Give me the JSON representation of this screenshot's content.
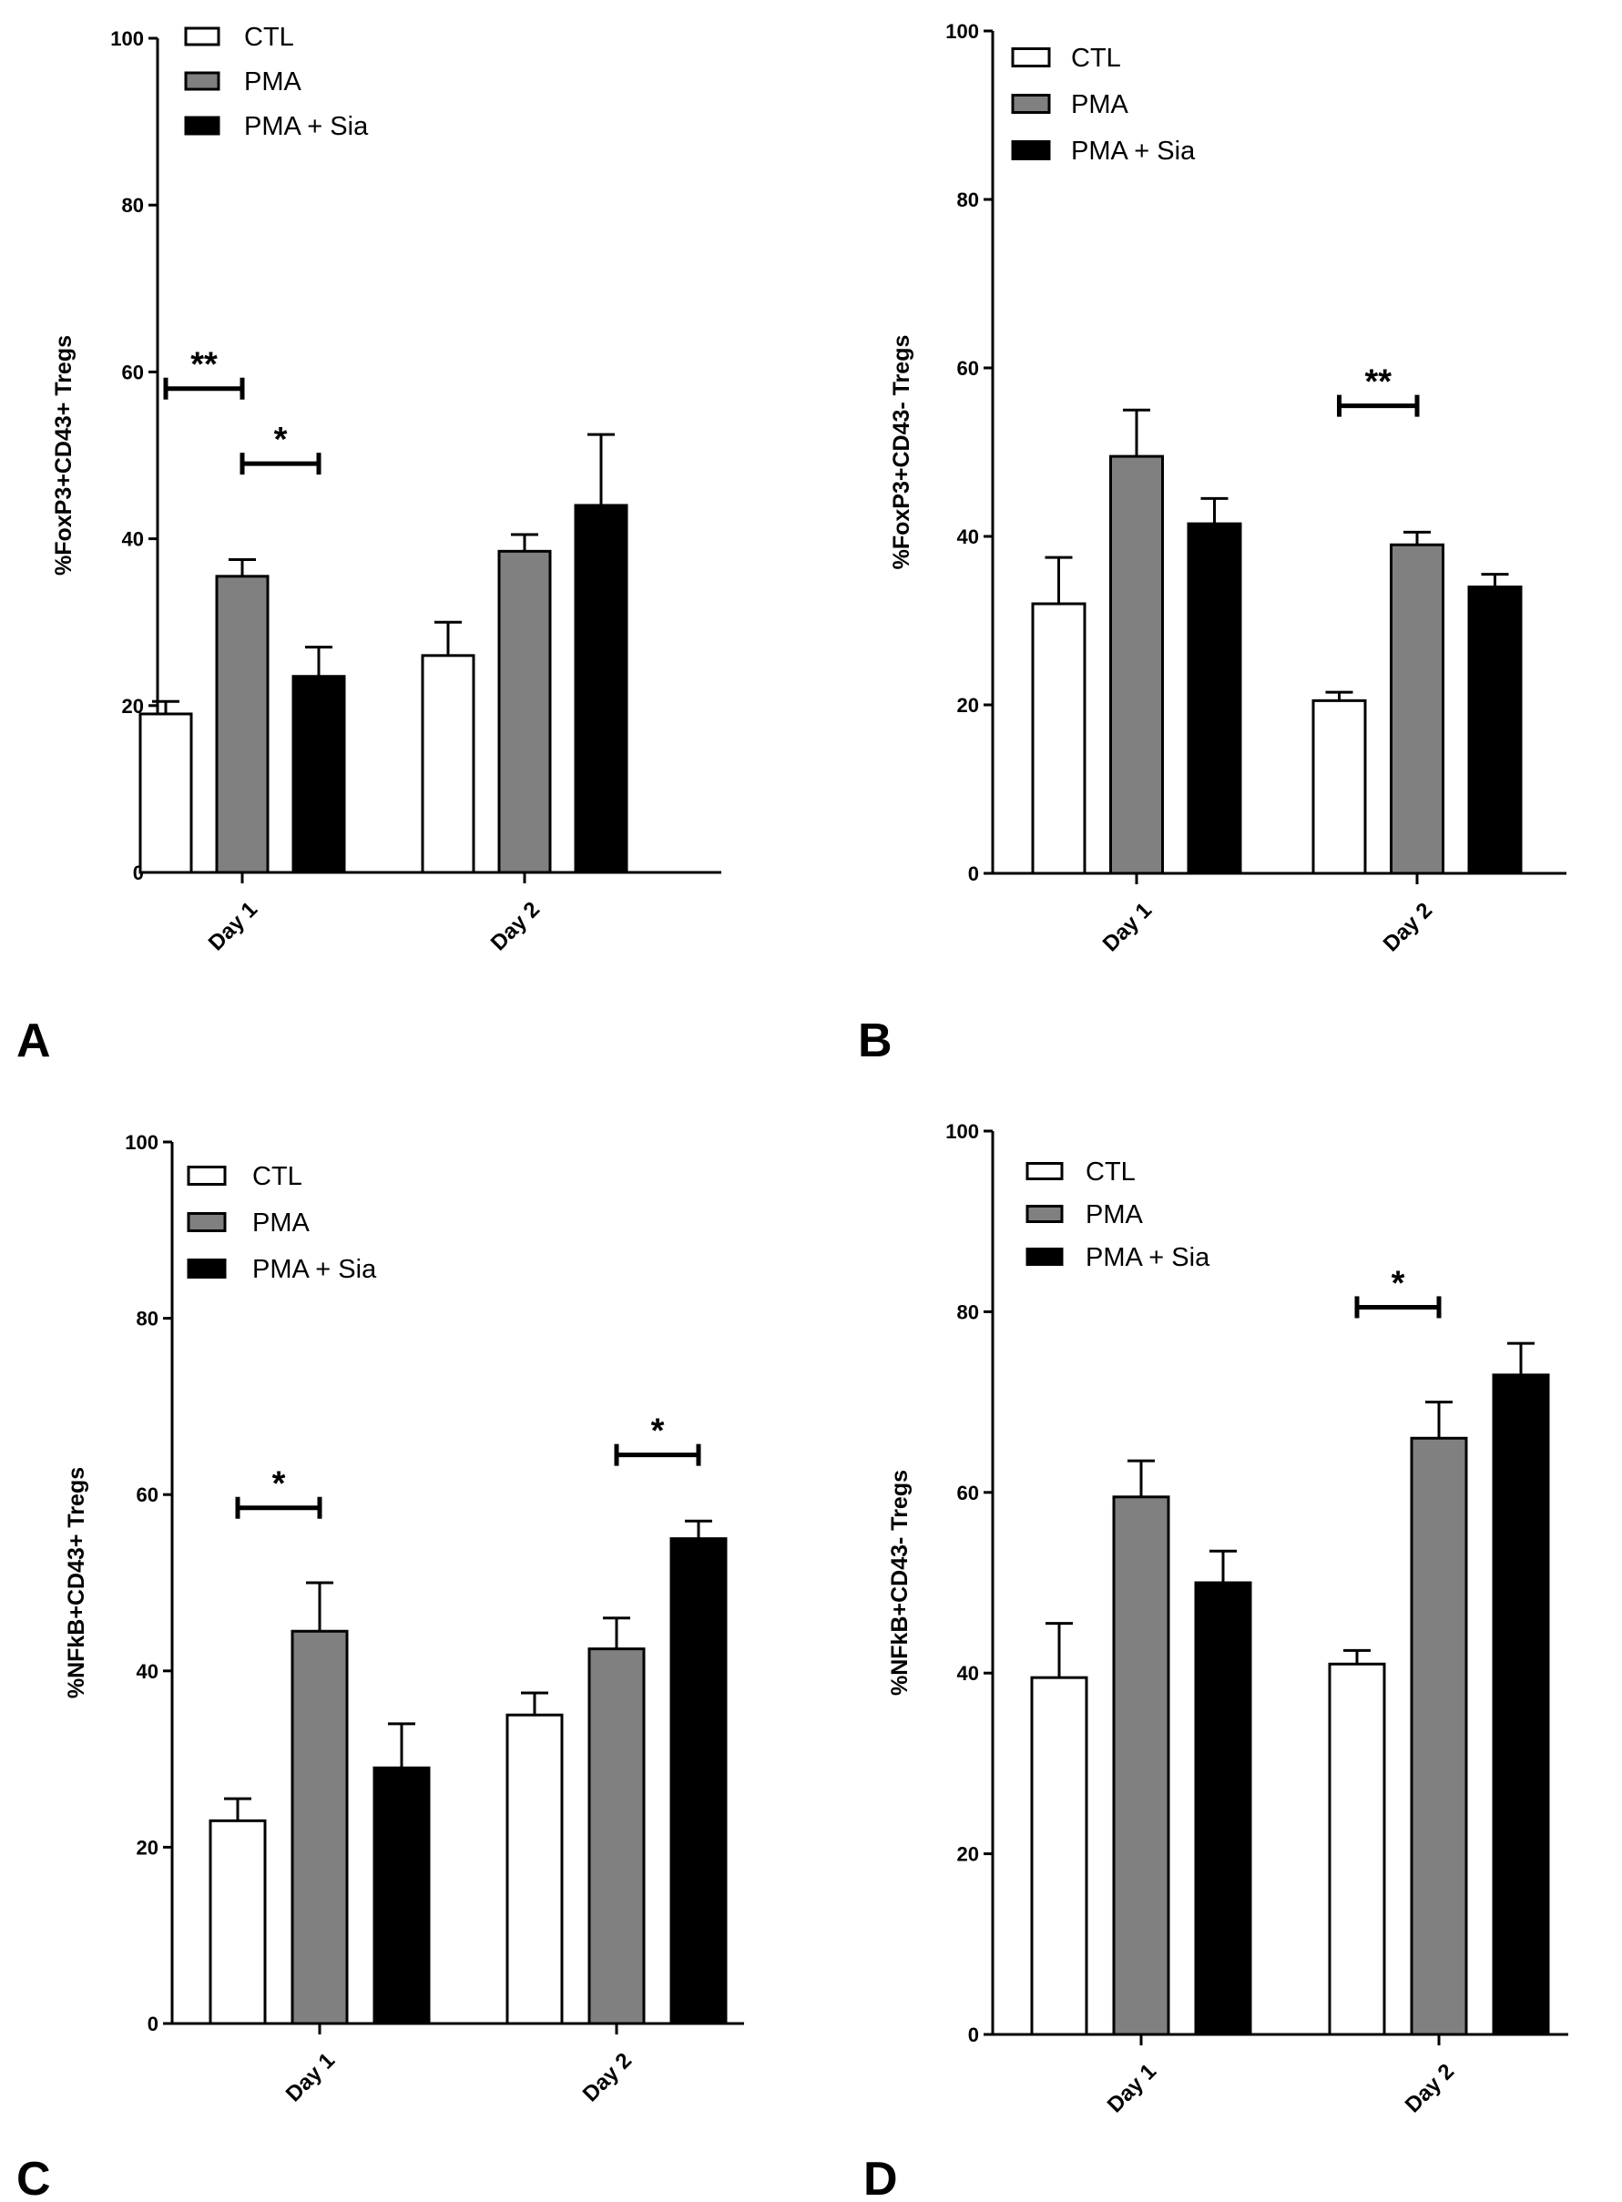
{
  "figure": {
    "colors": {
      "CTL": "#ffffff",
      "PMA": "#808080",
      "PMA + Sia": "#000000",
      "stroke": "#000000"
    }
  },
  "chart_data": [
    {
      "panel": "A",
      "type": "bar",
      "ylabel": "%FoxP3+CD43+ Tregs",
      "ylim": [
        0,
        100
      ],
      "yticks": [
        0,
        20,
        40,
        60,
        80,
        100
      ],
      "categories": [
        "Day 1",
        "Day 2"
      ],
      "legend": [
        "CTL",
        "PMA",
        "PMA + Sia"
      ],
      "legend_position": "top-left",
      "series": [
        {
          "name": "CTL",
          "values": [
            19,
            26
          ],
          "errors": [
            1.5,
            4
          ]
        },
        {
          "name": "PMA",
          "values": [
            35.5,
            38.5
          ],
          "errors": [
            2,
            2
          ]
        },
        {
          "name": "PMA + Sia",
          "values": [
            23.5,
            44
          ],
          "errors": [
            3.5,
            8.5
          ]
        }
      ],
      "significance": [
        {
          "label": "**",
          "category": "Day 1",
          "from": "CTL",
          "to": "PMA",
          "y": 58
        },
        {
          "label": "*",
          "category": "Day 1",
          "from": "PMA",
          "to": "PMA + Sia",
          "y": 49
        }
      ]
    },
    {
      "panel": "B",
      "type": "bar",
      "ylabel": "%FoxP3+CD43- Tregs",
      "ylim": [
        0,
        100
      ],
      "yticks": [
        0,
        20,
        40,
        60,
        80,
        100
      ],
      "categories": [
        "Day 1",
        "Day 2"
      ],
      "legend": [
        "CTL",
        "PMA",
        "PMA + Sia"
      ],
      "legend_position": "top-left",
      "series": [
        {
          "name": "CTL",
          "values": [
            32,
            20.5
          ],
          "errors": [
            5.5,
            1
          ]
        },
        {
          "name": "PMA",
          "values": [
            49.5,
            39
          ],
          "errors": [
            5.5,
            1.5
          ]
        },
        {
          "name": "PMA + Sia",
          "values": [
            41.5,
            34
          ],
          "errors": [
            3,
            1.5
          ]
        }
      ],
      "significance": [
        {
          "label": "**",
          "category": "Day 2",
          "from": "CTL",
          "to": "PMA",
          "y": 55.5
        }
      ]
    },
    {
      "panel": "C",
      "type": "bar",
      "ylabel": "%NFkB+CD43+ Tregs",
      "ylim": [
        0,
        100
      ],
      "yticks": [
        0,
        20,
        40,
        60,
        80,
        100
      ],
      "categories": [
        "Day 1",
        "Day 2"
      ],
      "legend": [
        "CTL",
        "PMA",
        "PMA + Sia"
      ],
      "legend_position": "top-left",
      "series": [
        {
          "name": "CTL",
          "values": [
            23,
            35
          ],
          "errors": [
            2.5,
            2.5
          ]
        },
        {
          "name": "PMA",
          "values": [
            44.5,
            42.5
          ],
          "errors": [
            5.5,
            3.5
          ]
        },
        {
          "name": "PMA + Sia",
          "values": [
            29,
            55
          ],
          "errors": [
            5,
            2
          ]
        }
      ],
      "significance": [
        {
          "label": "*",
          "category": "Day 1",
          "from": "CTL",
          "to": "PMA",
          "y": 58.5
        },
        {
          "label": "*",
          "category": "Day 2",
          "from": "PMA",
          "to": "PMA + Sia",
          "y": 64.5
        }
      ]
    },
    {
      "panel": "D",
      "type": "bar",
      "ylabel": "%NFkB+CD43- Tregs",
      "ylim": [
        0,
        100
      ],
      "yticks": [
        0,
        20,
        40,
        60,
        80,
        100
      ],
      "categories": [
        "Day 1",
        "Day 2"
      ],
      "legend": [
        "CTL",
        "PMA",
        "PMA + Sia"
      ],
      "legend_position": "top-left",
      "series": [
        {
          "name": "CTL",
          "values": [
            39.5,
            41
          ],
          "errors": [
            6,
            1.5
          ]
        },
        {
          "name": "PMA",
          "values": [
            59.5,
            66
          ],
          "errors": [
            4,
            4
          ]
        },
        {
          "name": "PMA + Sia",
          "values": [
            50,
            73
          ],
          "errors": [
            3.5,
            3.5
          ]
        }
      ],
      "significance": [
        {
          "label": "*",
          "category": "Day 2",
          "from": "CTL",
          "to": "PMA",
          "y": 80.5
        }
      ]
    }
  ]
}
